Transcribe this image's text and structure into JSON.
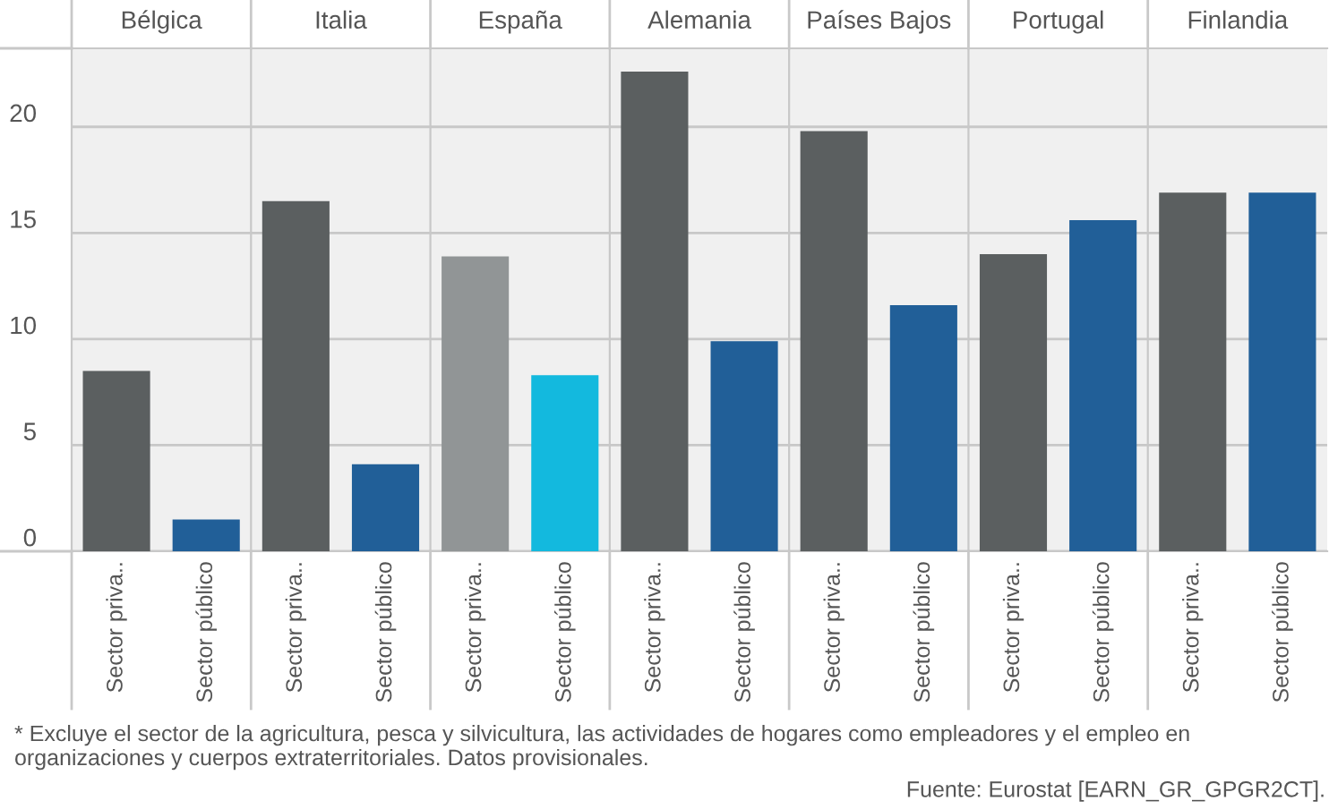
{
  "chart_data": [
    {
      "type": "bar",
      "title": "Bélgica",
      "categories": [
        "Sector priva..",
        "Sector público"
      ],
      "values": [
        8.5,
        1.5
      ],
      "colors": [
        "#5b5f60",
        "#215f98"
      ],
      "ylim": [
        0,
        23.7
      ],
      "yticks": [
        0,
        5,
        10,
        15,
        20
      ],
      "grid": "y",
      "annotations": [
        "* Excluye el sector de la agricultura, pesca y silvicultura, las actividades de hogares como empleadores y el empleo en organizaciones y cuerpos extraterritoriales. Datos provisionales.",
        "Fuente: Eurostat [EARN_GR_GPGR2CT]."
      ]
    },
    {
      "type": "bar",
      "title": "Italia",
      "categories": [
        "Sector priva..",
        "Sector público"
      ],
      "values": [
        16.5,
        4.1
      ],
      "colors": [
        "#5b5f60",
        "#215f98"
      ],
      "ylim": [
        0,
        23.7
      ],
      "yticks": [
        0,
        5,
        10,
        15,
        20
      ],
      "grid": "y",
      "tick_labels": "x"
    },
    {
      "type": "bar",
      "title": "España",
      "categories": [
        "Sector priva..",
        "Sector público"
      ],
      "values": [
        13.9,
        8.3
      ],
      "colors": [
        "#919596",
        "#13b9de"
      ],
      "ylim": [
        0,
        23.7
      ],
      "yticks": [
        0,
        5,
        10,
        15,
        20
      ],
      "grid": "y",
      "tick_labels": "x"
    },
    {
      "type": "bar",
      "title": "Alemania",
      "categories": [
        "Sector priva..",
        "Sector público"
      ],
      "values": [
        22.6,
        9.9
      ],
      "colors": [
        "#5b5f60",
        "#215f98"
      ],
      "ylim": [
        0,
        23.7
      ],
      "yticks": [
        0,
        5,
        10,
        15,
        20
      ],
      "grid": "y",
      "tick_labels": "x"
    },
    {
      "type": "bar",
      "title": "Países Bajos",
      "categories": [
        "Sector priva..",
        "Sector público"
      ],
      "values": [
        19.8,
        11.6
      ],
      "colors": [
        "#5b5f60",
        "#215f98"
      ],
      "ylim": [
        0,
        23.7
      ],
      "yticks": [
        0,
        5,
        10,
        15,
        20
      ],
      "grid": "y",
      "tick_labels": "x"
    },
    {
      "type": "bar",
      "title": "Portugal",
      "categories": [
        "Sector priva..",
        "Sector público"
      ],
      "values": [
        14.0,
        15.6
      ],
      "colors": [
        "#5b5f60",
        "#215f98"
      ],
      "ylim": [
        0,
        23.7
      ],
      "yticks": [
        0,
        5,
        10,
        15,
        20
      ],
      "grid": "y",
      "tick_labels": "x"
    },
    {
      "type": "bar",
      "title": "Finlandia",
      "categories": [
        "Sector priva..",
        "Sector público"
      ],
      "values": [
        16.9,
        16.9
      ],
      "colors": [
        "#5b5f60",
        "#215f98"
      ],
      "ylim": [
        0,
        23.7
      ],
      "yticks": [
        0,
        5,
        10,
        15,
        20
      ],
      "grid": "y",
      "tick_labels": "x"
    }
  ]
}
